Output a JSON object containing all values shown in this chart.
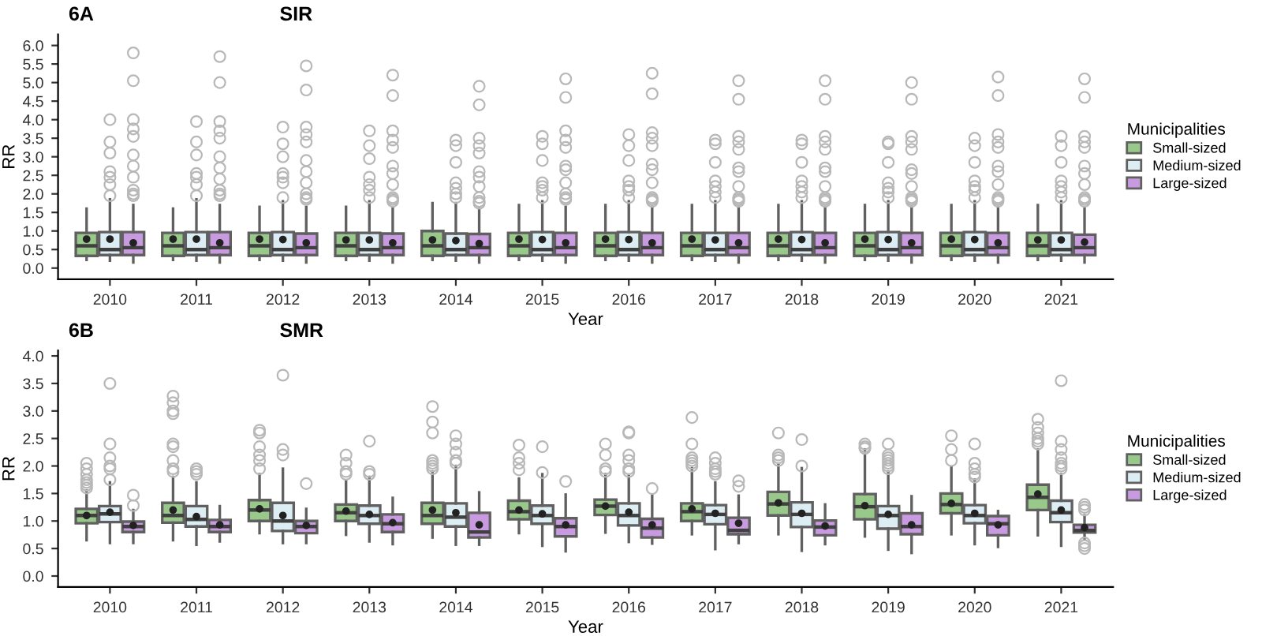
{
  "chart_data": [
    {
      "type": "box",
      "title": "6A",
      "subtitle": "SIR",
      "xlabel": "Year",
      "ylabel": "RR",
      "legend_title": "Municipalities",
      "legend": "right",
      "grid": false,
      "categories": [
        "2010",
        "2011",
        "2012",
        "2013",
        "2014",
        "2015",
        "2016",
        "2017",
        "2018",
        "2019",
        "2020",
        "2021"
      ],
      "ylim": [
        -0.3,
        6.3
      ],
      "yticks": [
        {
          "value": 0,
          "label": "0.0"
        },
        {
          "value": 0.5,
          "label": "0.5"
        },
        {
          "value": 1,
          "label": "1.0"
        },
        {
          "value": 1.5,
          "label": "1.5"
        },
        {
          "value": 2,
          "label": "2.0"
        },
        {
          "value": 2.5,
          "label": "2.5"
        },
        {
          "value": 3,
          "label": "3.0"
        },
        {
          "value": 3.5,
          "label": "3.5"
        },
        {
          "value": 4,
          "label": "4.0"
        },
        {
          "value": 4.5,
          "label": "4.5"
        },
        {
          "value": 5,
          "label": "5.0"
        },
        {
          "value": 5.5,
          "label": "5.5"
        },
        {
          "value": 6,
          "label": "6.0"
        }
      ],
      "series": [
        {
          "name": "Small-sized",
          "color": "#98c88a",
          "boxes": [
            {
              "low": 0.22,
              "q1": 0.33,
              "median": 0.6,
              "q3": 0.95,
              "high": 1.6,
              "mean": 0.78
            },
            {
              "low": 0.22,
              "q1": 0.33,
              "median": 0.6,
              "q3": 0.95,
              "high": 1.6,
              "mean": 0.78
            },
            {
              "low": 0.22,
              "q1": 0.33,
              "median": 0.6,
              "q3": 0.95,
              "high": 1.65,
              "mean": 0.78
            },
            {
              "low": 0.22,
              "q1": 0.33,
              "median": 0.6,
              "q3": 0.95,
              "high": 1.65,
              "mean": 0.76
            },
            {
              "low": 0.22,
              "q1": 0.33,
              "median": 0.6,
              "q3": 1.0,
              "high": 1.75,
              "mean": 0.76
            },
            {
              "low": 0.22,
              "q1": 0.33,
              "median": 0.6,
              "q3": 0.95,
              "high": 1.7,
              "mean": 0.78
            },
            {
              "low": 0.22,
              "q1": 0.33,
              "median": 0.6,
              "q3": 0.95,
              "high": 1.7,
              "mean": 0.78
            },
            {
              "low": 0.22,
              "q1": 0.33,
              "median": 0.6,
              "q3": 0.95,
              "high": 1.7,
              "mean": 0.78
            },
            {
              "low": 0.22,
              "q1": 0.33,
              "median": 0.6,
              "q3": 0.95,
              "high": 1.7,
              "mean": 0.78
            },
            {
              "low": 0.22,
              "q1": 0.33,
              "median": 0.6,
              "q3": 0.95,
              "high": 1.7,
              "mean": 0.78
            },
            {
              "low": 0.22,
              "q1": 0.33,
              "median": 0.6,
              "q3": 0.95,
              "high": 1.7,
              "mean": 0.78
            },
            {
              "low": 0.22,
              "q1": 0.33,
              "median": 0.6,
              "q3": 0.95,
              "high": 1.7,
              "mean": 0.76
            }
          ]
        },
        {
          "name": "Medium-sized",
          "color": "#dceef4",
          "boxes": [
            {
              "low": 0.2,
              "q1": 0.35,
              "median": 0.5,
              "q3": 0.97,
              "high": 1.85,
              "mean": 0.78,
              "outliers": [
                1.95,
                2.25,
                2.45,
                2.6,
                3.1,
                3.4,
                4.0
              ]
            },
            {
              "low": 0.2,
              "q1": 0.35,
              "median": 0.5,
              "q3": 0.97,
              "high": 1.85,
              "mean": 0.78,
              "outliers": [
                1.95,
                2.25,
                2.45,
                2.55,
                3.05,
                3.4,
                3.95
              ]
            },
            {
              "low": 0.2,
              "q1": 0.35,
              "median": 0.5,
              "q3": 0.97,
              "high": 1.8,
              "mean": 0.77,
              "outliers": [
                1.9,
                2.3,
                2.45,
                2.55,
                3.0,
                3.35,
                3.8
              ]
            },
            {
              "low": 0.2,
              "q1": 0.35,
              "median": 0.5,
              "q3": 0.95,
              "high": 1.8,
              "mean": 0.76,
              "outliers": [
                1.9,
                2.1,
                2.25,
                2.45,
                2.95,
                3.3,
                3.7
              ]
            },
            {
              "low": 0.2,
              "q1": 0.35,
              "median": 0.5,
              "q3": 0.93,
              "high": 1.75,
              "mean": 0.74,
              "outliers": [
                1.9,
                2.0,
                2.15,
                2.3,
                2.85,
                3.3,
                3.45
              ]
            },
            {
              "low": 0.2,
              "q1": 0.35,
              "median": 0.5,
              "q3": 0.97,
              "high": 1.8,
              "mean": 0.77,
              "outliers": [
                1.9,
                2.1,
                2.2,
                2.3,
                2.9,
                3.35,
                3.55
              ]
            },
            {
              "low": 0.2,
              "q1": 0.35,
              "median": 0.5,
              "q3": 0.97,
              "high": 1.8,
              "mean": 0.77,
              "outliers": [
                1.9,
                2.1,
                2.2,
                2.35,
                2.9,
                3.3,
                3.6
              ]
            },
            {
              "low": 0.2,
              "q1": 0.35,
              "median": 0.5,
              "q3": 0.95,
              "high": 1.8,
              "mean": 0.76,
              "outliers": [
                1.9,
                2.05,
                2.2,
                2.35,
                2.85,
                3.35,
                3.45
              ]
            },
            {
              "low": 0.2,
              "q1": 0.35,
              "median": 0.5,
              "q3": 0.97,
              "high": 1.8,
              "mean": 0.77,
              "outliers": [
                1.9,
                2.05,
                2.2,
                2.35,
                2.85,
                3.35,
                3.45
              ]
            },
            {
              "low": 0.2,
              "q1": 0.35,
              "median": 0.5,
              "q3": 0.97,
              "high": 1.8,
              "mean": 0.77,
              "outliers": [
                1.9,
                2.05,
                2.15,
                2.3,
                2.85,
                3.35,
                3.4
              ]
            },
            {
              "low": 0.2,
              "q1": 0.35,
              "median": 0.5,
              "q3": 0.97,
              "high": 1.8,
              "mean": 0.77,
              "outliers": [
                1.9,
                2.1,
                2.2,
                2.35,
                2.85,
                3.3,
                3.5
              ]
            },
            {
              "low": 0.2,
              "q1": 0.35,
              "median": 0.5,
              "q3": 0.95,
              "high": 1.8,
              "mean": 0.76,
              "outliers": [
                1.9,
                2.05,
                2.2,
                2.35,
                2.85,
                3.3,
                3.55
              ]
            }
          ]
        },
        {
          "name": "Large-sized",
          "color": "#c89be0",
          "boxes": [
            {
              "low": 0.15,
              "q1": 0.35,
              "median": 0.55,
              "q3": 0.97,
              "high": 1.7,
              "mean": 0.68,
              "outliers": [
                1.95,
                2.0,
                2.1,
                2.45,
                2.75,
                3.05,
                3.55,
                3.75,
                4.0,
                5.05,
                5.8
              ]
            },
            {
              "low": 0.15,
              "q1": 0.35,
              "median": 0.55,
              "q3": 0.97,
              "high": 1.7,
              "mean": 0.68,
              "outliers": [
                1.95,
                2.0,
                2.1,
                2.4,
                2.7,
                3.0,
                3.5,
                3.7,
                3.95,
                5.0,
                5.7
              ]
            },
            {
              "low": 0.15,
              "q1": 0.35,
              "median": 0.55,
              "q3": 0.93,
              "high": 1.65,
              "mean": 0.68,
              "outliers": [
                1.85,
                1.9,
                2.0,
                2.3,
                2.6,
                2.9,
                3.4,
                3.6,
                3.8,
                4.8,
                5.45
              ]
            },
            {
              "low": 0.15,
              "q1": 0.35,
              "median": 0.55,
              "q3": 0.93,
              "high": 1.6,
              "mean": 0.68,
              "outliers": [
                1.8,
                1.85,
                1.9,
                2.25,
                2.55,
                2.75,
                3.25,
                3.45,
                3.7,
                4.65,
                5.2
              ]
            },
            {
              "low": 0.15,
              "q1": 0.35,
              "median": 0.55,
              "q3": 0.92,
              "high": 1.6,
              "mean": 0.66,
              "outliers": [
                1.75,
                1.8,
                1.9,
                2.2,
                2.45,
                2.6,
                3.1,
                3.3,
                3.5,
                4.4,
                4.9
              ]
            },
            {
              "low": 0.15,
              "q1": 0.35,
              "median": 0.55,
              "q3": 0.95,
              "high": 1.65,
              "mean": 0.68,
              "outliers": [
                1.85,
                1.9,
                2.0,
                2.3,
                2.65,
                2.75,
                3.25,
                3.45,
                3.7,
                4.6,
                5.1
              ]
            },
            {
              "low": 0.15,
              "q1": 0.35,
              "median": 0.55,
              "q3": 0.95,
              "high": 1.65,
              "mean": 0.68,
              "outliers": [
                1.8,
                1.85,
                1.9,
                2.3,
                2.65,
                2.8,
                3.3,
                3.5,
                3.65,
                4.7,
                5.25
              ]
            },
            {
              "low": 0.15,
              "q1": 0.35,
              "median": 0.55,
              "q3": 0.95,
              "high": 1.65,
              "mean": 0.68,
              "outliers": [
                1.8,
                1.85,
                1.9,
                2.2,
                2.6,
                2.7,
                3.2,
                3.4,
                3.55,
                4.55,
                5.05
              ]
            },
            {
              "low": 0.15,
              "q1": 0.35,
              "median": 0.55,
              "q3": 0.95,
              "high": 1.65,
              "mean": 0.68,
              "outliers": [
                1.8,
                1.85,
                1.9,
                2.2,
                2.6,
                2.7,
                3.2,
                3.4,
                3.55,
                4.55,
                5.05
              ]
            },
            {
              "low": 0.15,
              "q1": 0.35,
              "median": 0.55,
              "q3": 0.95,
              "high": 1.65,
              "mean": 0.68,
              "outliers": [
                1.8,
                1.85,
                1.9,
                2.2,
                2.55,
                2.65,
                3.2,
                3.4,
                3.55,
                4.55,
                5.0
              ]
            },
            {
              "low": 0.15,
              "q1": 0.35,
              "median": 0.55,
              "q3": 0.95,
              "high": 1.65,
              "mean": 0.68,
              "outliers": [
                1.8,
                1.85,
                1.9,
                2.25,
                2.6,
                2.75,
                3.25,
                3.4,
                3.6,
                4.65,
                5.15
              ]
            },
            {
              "low": 0.15,
              "q1": 0.35,
              "median": 0.55,
              "q3": 0.9,
              "high": 1.6,
              "mean": 0.7,
              "outliers": [
                1.8,
                1.85,
                1.9,
                2.25,
                2.55,
                2.75,
                3.25,
                3.4,
                3.55,
                4.6,
                5.1
              ]
            }
          ]
        }
      ]
    },
    {
      "type": "box",
      "title": "6B",
      "subtitle": "SMR",
      "xlabel": "Year",
      "ylabel": "RR",
      "legend_title": "Municipalities",
      "legend": "right",
      "grid": false,
      "categories": [
        "2010",
        "2011",
        "2012",
        "2013",
        "2014",
        "2015",
        "2016",
        "2017",
        "2018",
        "2019",
        "2020",
        "2021"
      ],
      "ylim": [
        -0.2,
        4.1
      ],
      "yticks": [
        {
          "value": 0,
          "label": "0.0"
        },
        {
          "value": 0.5,
          "label": "0.5"
        },
        {
          "value": 1,
          "label": "1.0"
        },
        {
          "value": 1.5,
          "label": "1.5"
        },
        {
          "value": 2,
          "label": "2.0"
        },
        {
          "value": 2.5,
          "label": "2.5"
        },
        {
          "value": 3,
          "label": "3.0"
        },
        {
          "value": 3.5,
          "label": "3.5"
        },
        {
          "value": 4,
          "label": "4.0"
        }
      ],
      "series": [
        {
          "name": "Small-sized",
          "color": "#98c88a",
          "boxes": [
            {
              "low": 0.65,
              "q1": 0.96,
              "median": 1.1,
              "q3": 1.22,
              "high": 1.55,
              "mean": 1.1,
              "outliers": [
                1.6,
                1.65,
                1.7,
                1.75,
                1.85,
                1.95,
                2.05
              ]
            },
            {
              "low": 0.65,
              "q1": 0.97,
              "median": 1.1,
              "q3": 1.33,
              "high": 1.8,
              "mean": 1.2,
              "outliers": [
                1.9,
                1.95,
                2.1,
                2.35,
                2.4,
                2.95,
                3.0,
                3.15,
                3.27
              ]
            },
            {
              "low": 0.78,
              "q1": 1.0,
              "median": 1.2,
              "q3": 1.38,
              "high": 1.85,
              "mean": 1.22,
              "outliers": [
                1.95,
                2.1,
                2.2,
                2.35,
                2.6,
                2.65
              ]
            },
            {
              "low": 0.75,
              "q1": 1.0,
              "median": 1.15,
              "q3": 1.3,
              "high": 1.72,
              "mean": 1.18,
              "outliers": [
                1.85,
                1.9,
                2.05,
                2.2
              ]
            },
            {
              "low": 0.7,
              "q1": 0.95,
              "median": 1.1,
              "q3": 1.33,
              "high": 1.9,
              "mean": 1.2,
              "outliers": [
                1.95,
                2.0,
                2.05,
                2.1,
                2.6,
                2.8,
                3.08
              ]
            },
            {
              "low": 0.78,
              "q1": 1.03,
              "median": 1.17,
              "q3": 1.37,
              "high": 1.77,
              "mean": 1.2,
              "outliers": [
                1.93,
                2.05,
                2.15,
                2.38
              ]
            },
            {
              "low": 0.79,
              "q1": 1.11,
              "median": 1.27,
              "q3": 1.39,
              "high": 1.85,
              "mean": 1.27,
              "outliers": [
                1.9,
                1.95,
                2.2,
                2.4
              ]
            },
            {
              "low": 0.76,
              "q1": 1.0,
              "median": 1.17,
              "q3": 1.32,
              "high": 1.96,
              "mean": 1.22,
              "outliers": [
                2.0,
                2.05,
                2.1,
                2.15,
                2.4,
                2.88
              ]
            },
            {
              "low": 0.76,
              "q1": 1.1,
              "median": 1.31,
              "q3": 1.53,
              "high": 2.03,
              "mean": 1.33,
              "outliers": [
                2.1,
                2.15,
                2.2,
                2.6
              ]
            },
            {
              "low": 0.72,
              "q1": 1.03,
              "median": 1.26,
              "q3": 1.49,
              "high": 2.3,
              "mean": 1.28,
              "outliers": [
                2.32,
                2.35,
                2.4
              ]
            },
            {
              "low": 0.76,
              "q1": 1.14,
              "median": 1.3,
              "q3": 1.5,
              "high": 1.98,
              "mean": 1.32,
              "outliers": [
                2.1,
                2.3,
                2.55
              ]
            },
            {
              "low": 0.74,
              "q1": 1.2,
              "median": 1.43,
              "q3": 1.66,
              "high": 2.3,
              "mean": 1.49,
              "outliers": [
                2.4,
                2.45,
                2.5,
                2.6,
                2.7,
                2.85
              ]
            }
          ]
        },
        {
          "name": "Medium-sized",
          "color": "#dceef4",
          "boxes": [
            {
              "low": 0.6,
              "q1": 0.98,
              "median": 1.13,
              "q3": 1.27,
              "high": 1.7,
              "mean": 1.16,
              "outliers": [
                1.75,
                1.95,
                2.0,
                2.15,
                2.4,
                3.5
              ]
            },
            {
              "low": 0.57,
              "q1": 0.9,
              "median": 1.03,
              "q3": 1.27,
              "high": 1.7,
              "mean": 1.08,
              "outliers": [
                1.85,
                1.9,
                1.95
              ]
            },
            {
              "low": 0.6,
              "q1": 0.82,
              "median": 1.0,
              "q3": 1.33,
              "high": 1.95,
              "mean": 1.1,
              "outliers": [
                2.2,
                2.3,
                3.65
              ]
            },
            {
              "low": 0.63,
              "q1": 0.95,
              "median": 1.1,
              "q3": 1.28,
              "high": 1.8,
              "mean": 1.12,
              "outliers": [
                1.85,
                1.9,
                2.45
              ]
            },
            {
              "low": 0.57,
              "q1": 0.9,
              "median": 1.07,
              "q3": 1.32,
              "high": 2.0,
              "mean": 1.15,
              "outliers": [
                2.05,
                2.1,
                2.25,
                2.4,
                2.55
              ]
            },
            {
              "low": 0.55,
              "q1": 0.95,
              "median": 1.1,
              "q3": 1.28,
              "high": 1.85,
              "mean": 1.13,
              "outliers": [
                1.88,
                2.35
              ]
            },
            {
              "low": 0.62,
              "q1": 0.92,
              "median": 1.1,
              "q3": 1.32,
              "high": 1.82,
              "mean": 1.16,
              "outliers": [
                1.9,
                1.95,
                2.1,
                2.2,
                2.6,
                2.62
              ]
            },
            {
              "low": 0.49,
              "q1": 0.94,
              "median": 1.12,
              "q3": 1.29,
              "high": 1.7,
              "mean": 1.14,
              "outliers": [
                1.85,
                1.9,
                1.95,
                2.05,
                2.15
              ]
            },
            {
              "low": 0.46,
              "q1": 0.89,
              "median": 1.12,
              "q3": 1.34,
              "high": 1.96,
              "mean": 1.14,
              "outliers": [
                2.0,
                2.48
              ]
            },
            {
              "low": 0.48,
              "q1": 0.86,
              "median": 1.1,
              "q3": 1.27,
              "high": 1.9,
              "mean": 1.12,
              "outliers": [
                1.95,
                2.0,
                2.05,
                2.1,
                2.15,
                2.2,
                2.4
              ]
            },
            {
              "low": 0.58,
              "q1": 0.96,
              "median": 1.1,
              "q3": 1.29,
              "high": 1.75,
              "mean": 1.14,
              "outliers": [
                1.8,
                1.85,
                1.95,
                2.05,
                2.4
              ]
            },
            {
              "low": 0.55,
              "q1": 0.98,
              "median": 1.15,
              "q3": 1.37,
              "high": 1.85,
              "mean": 1.2,
              "outliers": [
                1.95,
                2.0,
                2.05,
                2.15,
                2.3,
                2.45,
                3.55
              ]
            }
          ]
        },
        {
          "name": "Large-sized",
          "color": "#c89be0",
          "boxes": [
            {
              "low": 0.6,
              "q1": 0.8,
              "median": 0.9,
              "q3": 0.99,
              "high": 1.2,
              "mean": 0.92,
              "outliers": [
                1.28,
                1.47
              ]
            },
            {
              "low": 0.63,
              "q1": 0.8,
              "median": 0.9,
              "q3": 1.02,
              "high": 1.27,
              "mean": 0.93
            },
            {
              "low": 0.6,
              "q1": 0.78,
              "median": 0.9,
              "q3": 1.0,
              "high": 1.22,
              "mean": 0.92,
              "outliers": [
                1.68
              ]
            },
            {
              "low": 0.58,
              "q1": 0.8,
              "median": 0.95,
              "q3": 1.12,
              "high": 1.42,
              "mean": 0.97
            },
            {
              "low": 0.57,
              "q1": 0.7,
              "median": 0.8,
              "q3": 1.15,
              "high": 1.52,
              "mean": 0.93
            },
            {
              "low": 0.45,
              "q1": 0.72,
              "median": 0.9,
              "q3": 1.05,
              "high": 1.48,
              "mean": 0.93,
              "outliers": [
                1.72
              ]
            },
            {
              "low": 0.59,
              "q1": 0.7,
              "median": 0.87,
              "q3": 1.04,
              "high": 1.46,
              "mean": 0.93,
              "outliers": [
                1.59
              ]
            },
            {
              "low": 0.6,
              "q1": 0.76,
              "median": 0.83,
              "q3": 1.06,
              "high": 1.46,
              "mean": 0.96,
              "outliers": [
                1.63,
                1.73
              ]
            },
            {
              "low": 0.58,
              "q1": 0.74,
              "median": 0.89,
              "q3": 1.01,
              "high": 1.3,
              "mean": 0.91
            },
            {
              "low": 0.42,
              "q1": 0.76,
              "median": 0.9,
              "q3": 1.14,
              "high": 1.45,
              "mean": 0.93
            },
            {
              "low": 0.53,
              "q1": 0.74,
              "median": 0.95,
              "q3": 1.09,
              "high": 1.18,
              "mean": 0.93
            },
            {
              "low": 0.68,
              "q1": 0.79,
              "median": 0.83,
              "q3": 0.93,
              "high": 1.1,
              "mean": 0.88,
              "outliers": [
                0.5,
                0.55,
                0.6,
                1.2,
                1.25,
                1.3
              ]
            }
          ]
        }
      ]
    }
  ]
}
